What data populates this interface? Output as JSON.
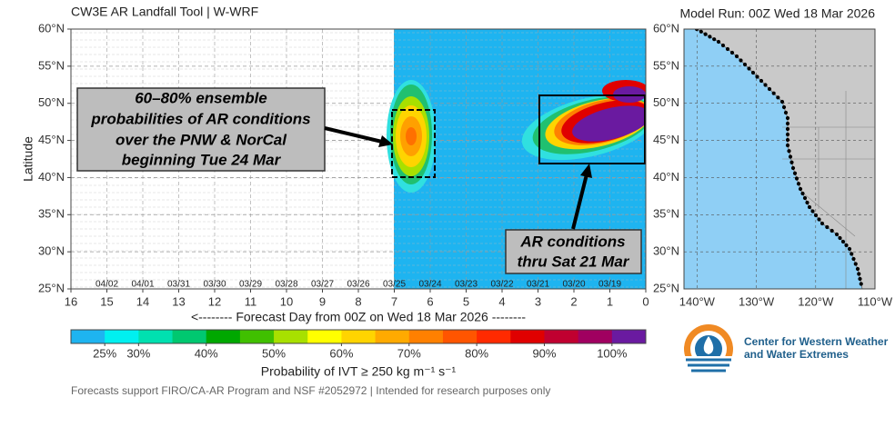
{
  "chart_data": {
    "type": "heatmap",
    "title": "CW3E AR Landfall Tool | W-WRF",
    "subtitle": "Model Run: 00Z Wed 18 Mar 2026",
    "x_label": "<-------- Forecast Day from 00Z on Wed 18 Mar 2026 --------",
    "y_label": "Latitude",
    "xlim": [
      16,
      0
    ],
    "xticks": [
      16,
      15,
      14,
      13,
      12,
      11,
      10,
      9,
      8,
      7,
      6,
      5,
      4,
      3,
      2,
      1,
      0
    ],
    "ylim": [
      25,
      60
    ],
    "yticks": [
      {
        "value": 25,
        "label": "25°N"
      },
      {
        "value": 30,
        "label": "30°N"
      },
      {
        "value": 35,
        "label": "35°N"
      },
      {
        "value": 40,
        "label": "40°N"
      },
      {
        "value": 45,
        "label": "45°N"
      },
      {
        "value": 50,
        "label": "50°N"
      },
      {
        "value": 55,
        "label": "55°N"
      },
      {
        "value": 60,
        "label": "60°N"
      }
    ],
    "grid": true,
    "dates": {
      "x": [
        15,
        14,
        13,
        12,
        11,
        10,
        9,
        8,
        7,
        6,
        5,
        4,
        3,
        2,
        1
      ],
      "labels": [
        "04/02",
        "04/01",
        "03/31",
        "03/30",
        "03/29",
        "03/28",
        "03/27",
        "03/26",
        "03/25",
        "03/24",
        "03/23",
        "03/22",
        "03/21",
        "03/20",
        "03/19"
      ]
    },
    "colorbar": {
      "label": "Probability of IVT ≥ 250 kg m⁻¹ s⁻¹",
      "lim": [
        20,
        105
      ],
      "colors": [
        "#1eb4f0",
        "#00f0f0",
        "#00e0b0",
        "#00c870",
        "#00a800",
        "#40c000",
        "#a8e000",
        "#ffff00",
        "#ffd400",
        "#ffaa00",
        "#ff8000",
        "#ff5500",
        "#ff2a00",
        "#e00000",
        "#c00030",
        "#a00060",
        "#6a1aa0"
      ],
      "ticks": [
        {
          "value": 25,
          "label": "25%"
        },
        {
          "value": 30,
          "label": "30%"
        },
        {
          "value": 40,
          "label": "40%"
        },
        {
          "value": 50,
          "label": "50%"
        },
        {
          "value": 60,
          "label": "60%"
        },
        {
          "value": 70,
          "label": "70%"
        },
        {
          "value": 80,
          "label": "80%"
        },
        {
          "value": 90,
          "label": "90%"
        },
        {
          "value": 100,
          "label": "100%"
        }
      ]
    },
    "annotations": [
      {
        "lines": [
          "60–80% ensemble",
          "probabilities of AR conditions",
          "over the PNW & NorCal",
          "beginning Tue 24 Mar"
        ]
      },
      {
        "lines": [
          "AR conditions",
          "thru Sat 21 Mar"
        ]
      }
    ],
    "map": {
      "xlim": [
        -142.2,
        -110
      ],
      "xticks": [
        {
          "value": -140,
          "label": "140°W"
        },
        {
          "value": -130,
          "label": "130°W"
        },
        {
          "value": -120,
          "label": "120°W"
        },
        {
          "value": -110,
          "label": "110°W"
        }
      ],
      "ylim": [
        25,
        60
      ],
      "yticks": [
        {
          "value": 25,
          "label": "25°N"
        },
        {
          "value": 30,
          "label": "30°N"
        },
        {
          "value": 35,
          "label": "35°N"
        },
        {
          "value": 40,
          "label": "40°N"
        },
        {
          "value": 45,
          "label": "45°N"
        },
        {
          "value": 50,
          "label": "50°N"
        },
        {
          "value": 55,
          "label": "55°N"
        },
        {
          "value": 60,
          "label": "60°N"
        }
      ]
    },
    "logo": {
      "lines": [
        "Center for Western Weather",
        "and Water Extremes"
      ]
    },
    "footer": "Forecasts support FIRO/CA-AR Program and NSF #2052972 | Intended for research purposes only"
  }
}
